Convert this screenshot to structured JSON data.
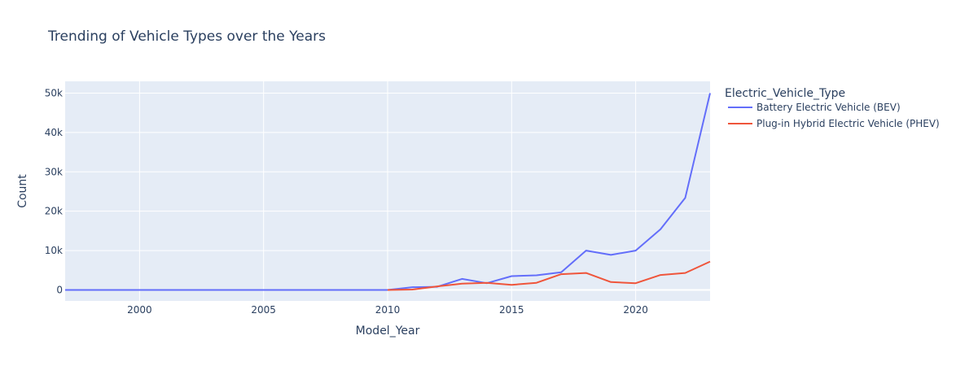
{
  "chart_data": {
    "type": "line",
    "title": "Trending of Vehicle Types over the Years",
    "xlabel": "Model_Year",
    "ylabel": "Count",
    "xlim": [
      1997,
      2023
    ],
    "ylim": [
      -2800,
      53000
    ],
    "x_ticks": [
      2000,
      2005,
      2010,
      2015,
      2020
    ],
    "x_tick_labels": [
      "2000",
      "2005",
      "2010",
      "2015",
      "2020"
    ],
    "y_ticks": [
      0,
      10000,
      20000,
      30000,
      40000,
      50000
    ],
    "y_tick_labels": [
      "0",
      "10k",
      "20k",
      "30k",
      "40k",
      "50k"
    ],
    "grid": true,
    "legend": {
      "title": "Electric_Vehicle_Type",
      "placement": "right"
    },
    "colors": {
      "plot_bg": "#e5ecf6",
      "grid": "#ffffff",
      "text": "#2a3f5f"
    },
    "series": [
      {
        "name": "Battery Electric Vehicle (BEV)",
        "color": "#636efa",
        "x": [
          1997,
          1998,
          1999,
          2000,
          2002,
          2003,
          2008,
          2010,
          2011,
          2012,
          2013,
          2014,
          2015,
          2016,
          2017,
          2018,
          2019,
          2020,
          2021,
          2022,
          2023
        ],
        "y": [
          0,
          0,
          0,
          0,
          0,
          0,
          0,
          0,
          700,
          800,
          2800,
          1700,
          3500,
          3700,
          4500,
          10000,
          8900,
          10000,
          15400,
          23400,
          50000
        ]
      },
      {
        "name": "Plug-in Hybrid Electric Vehicle (PHEV)",
        "color": "#ef553b",
        "x": [
          2010,
          2011,
          2012,
          2013,
          2014,
          2015,
          2016,
          2017,
          2018,
          2019,
          2020,
          2021,
          2022,
          2023
        ],
        "y": [
          0,
          100,
          900,
          1600,
          1800,
          1300,
          1800,
          4000,
          4300,
          2000,
          1700,
          3800,
          4300,
          7200
        ]
      }
    ]
  }
}
